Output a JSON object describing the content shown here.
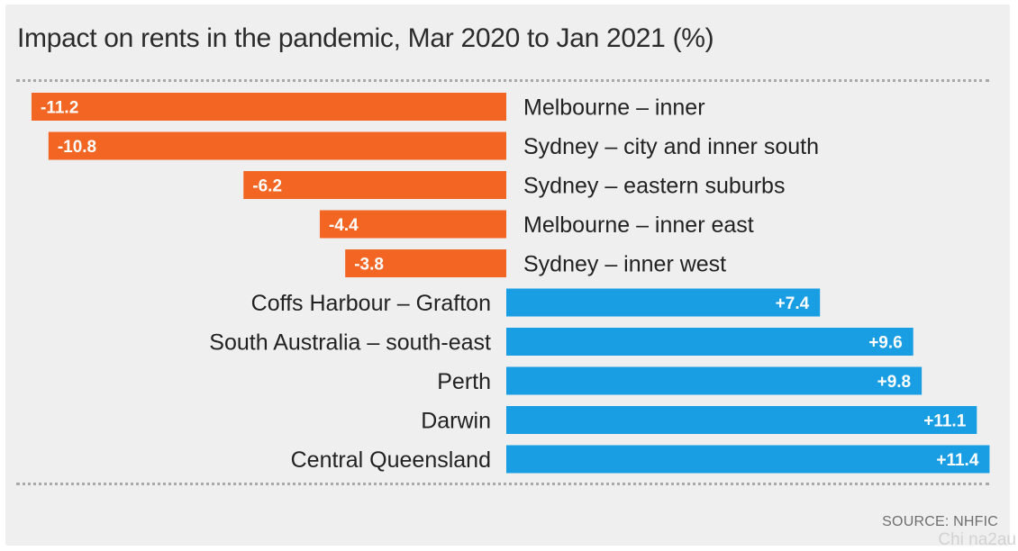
{
  "title": "Impact on rents in the pandemic, Mar 2020 to Jan 2021 (%)",
  "source": "SOURCE: NHFIC",
  "watermark": "Chi na2au",
  "colors": {
    "negative": "#f26522",
    "positive": "#1a9ee3",
    "label_text": "#222222",
    "value_text": "#ffffff"
  },
  "chart_data": {
    "type": "bar",
    "orientation": "horizontal",
    "title": "Impact on rents in the pandemic, Mar 2020 to Jan 2021 (%)",
    "categories": [
      "Melbourne – inner",
      "Sydney – city and inner south",
      "Sydney – eastern suburbs",
      "Melbourne – inner east",
      "Sydney – inner west",
      "Coffs Harbour – Grafton",
      "South Australia – south-east",
      "Perth",
      "Darwin",
      "Central Queensland"
    ],
    "values": [
      -11.2,
      -10.8,
      -6.2,
      -4.4,
      -3.8,
      7.4,
      9.6,
      9.8,
      11.1,
      11.4
    ],
    "value_labels": [
      "-11.2",
      "-10.8",
      "-6.2",
      "-4.4",
      "-3.8",
      "+7.4",
      "+9.6",
      "+9.8",
      "+11.1",
      "+11.4"
    ],
    "xlim": [
      -11.2,
      11.4
    ],
    "grid": false,
    "legend": "none"
  }
}
